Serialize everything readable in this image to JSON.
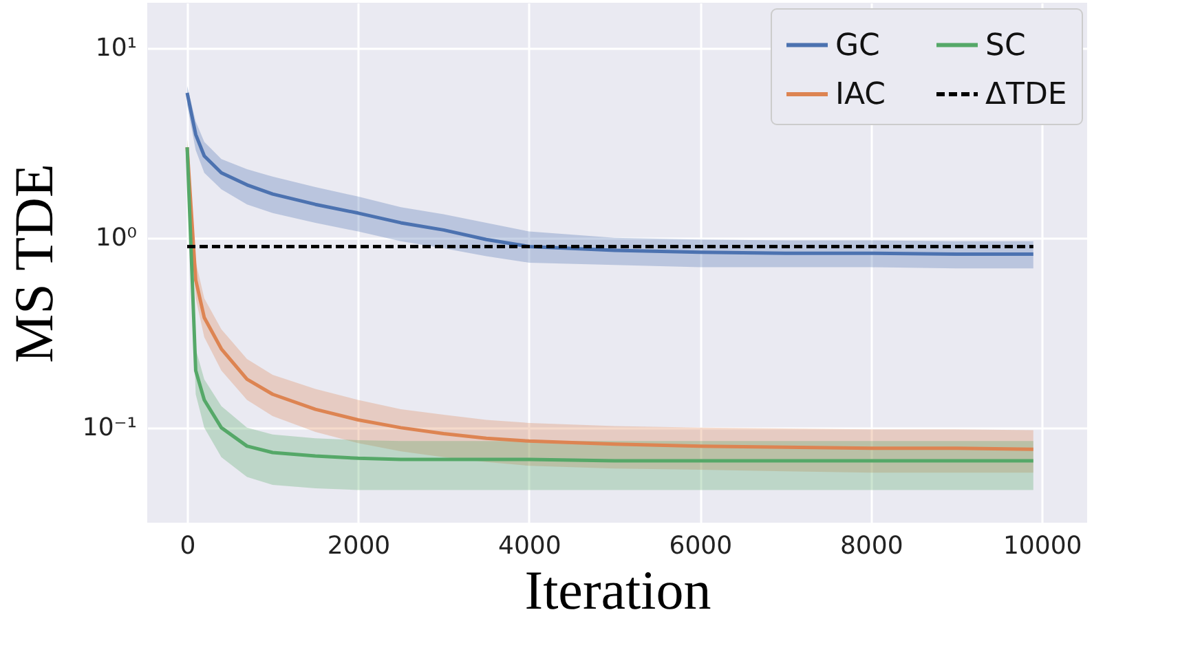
{
  "chart_data": {
    "type": "line",
    "xlabel": "Iteration",
    "ylabel": "MS TDE",
    "log": "y",
    "grid": true,
    "legend": "top right",
    "marker": "none",
    "x": [
      0,
      100,
      200,
      400,
      700,
      1000,
      1500,
      2000,
      2500,
      3000,
      3500,
      4000,
      5000,
      6000,
      7000,
      8000,
      9000,
      9900
    ],
    "xlim": [
      -467,
      10530
    ],
    "xticks": [
      0,
      2000,
      4000,
      6000,
      8000,
      10000
    ],
    "ylim": [
      0.0316,
      17.3
    ],
    "yticks": [
      {
        "value": 0.1,
        "label": "10⁻¹"
      },
      {
        "value": 1,
        "label": "10⁰"
      },
      {
        "value": 10,
        "label": "10¹"
      }
    ],
    "series": [
      {
        "name": "GC",
        "color": "#4c72b0",
        "values": [
          5.8,
          3.5,
          2.7,
          2.2,
          1.9,
          1.7,
          1.5,
          1.35,
          1.2,
          1.1,
          0.98,
          0.9,
          0.86,
          0.84,
          0.83,
          0.83,
          0.82,
          0.82
        ],
        "lower": [
          5.0,
          2.9,
          2.2,
          1.8,
          1.5,
          1.35,
          1.2,
          1.08,
          0.96,
          0.88,
          0.8,
          0.74,
          0.72,
          0.7,
          0.7,
          0.7,
          0.69,
          0.69
        ],
        "upper": [
          6.3,
          4.1,
          3.2,
          2.6,
          2.3,
          2.1,
          1.85,
          1.65,
          1.45,
          1.33,
          1.2,
          1.08,
          1.0,
          0.98,
          0.97,
          0.97,
          0.96,
          0.96
        ]
      },
      {
        "name": "IAC",
        "color": "#dd8452",
        "values": [
          3.0,
          0.6,
          0.38,
          0.26,
          0.18,
          0.15,
          0.125,
          0.11,
          0.1,
          0.093,
          0.088,
          0.085,
          0.082,
          0.08,
          0.079,
          0.078,
          0.078,
          0.077
        ],
        "lower": [
          2.6,
          0.48,
          0.3,
          0.2,
          0.14,
          0.115,
          0.095,
          0.083,
          0.075,
          0.07,
          0.066,
          0.063,
          0.061,
          0.06,
          0.059,
          0.058,
          0.058,
          0.058
        ],
        "upper": [
          3.3,
          0.75,
          0.48,
          0.33,
          0.23,
          0.19,
          0.16,
          0.14,
          0.125,
          0.117,
          0.11,
          0.106,
          0.102,
          0.1,
          0.099,
          0.098,
          0.098,
          0.097
        ]
      },
      {
        "name": "SC",
        "color": "#55a868",
        "values": [
          3.0,
          0.2,
          0.14,
          0.1,
          0.08,
          0.074,
          0.071,
          0.069,
          0.068,
          0.068,
          0.068,
          0.068,
          0.067,
          0.067,
          0.067,
          0.067,
          0.067,
          0.067
        ],
        "lower": [
          2.6,
          0.15,
          0.1,
          0.07,
          0.055,
          0.05,
          0.048,
          0.047,
          0.047,
          0.047,
          0.047,
          0.047,
          0.047,
          0.047,
          0.047,
          0.047,
          0.047,
          0.047
        ],
        "upper": [
          3.3,
          0.26,
          0.18,
          0.13,
          0.1,
          0.092,
          0.088,
          0.086,
          0.085,
          0.085,
          0.085,
          0.085,
          0.085,
          0.085,
          0.085,
          0.085,
          0.085,
          0.085
        ]
      },
      {
        "name": "ΔTDE",
        "color": "#000000",
        "line_style": "dashed",
        "x": [
          0,
          9900
        ],
        "values": [
          0.9,
          0.9
        ]
      }
    ]
  }
}
